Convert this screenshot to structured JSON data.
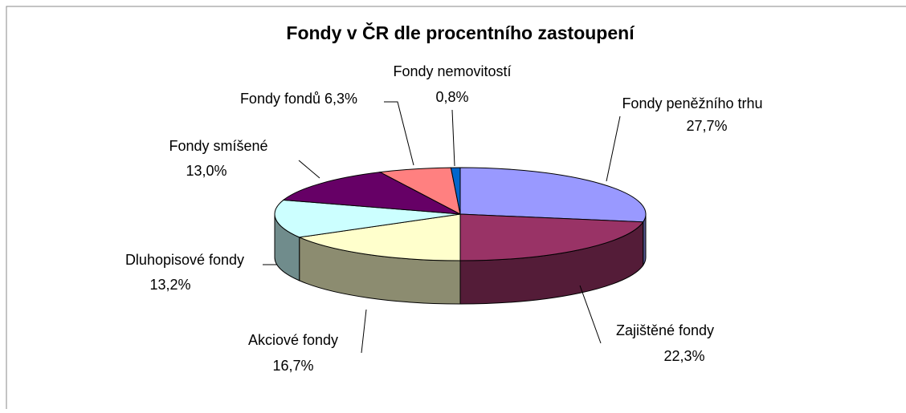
{
  "chart_data": {
    "type": "pie",
    "title": "Fondy v ČR dle procentního zastoupení",
    "categories": [
      "Fondy peněžního trhu",
      "Zajištěné fondy",
      "Akciové fondy",
      "Dluhopisové fondy",
      "Fondy smíšené",
      "Fondy fondů",
      "Fondy nemovitostí"
    ],
    "values": [
      27.7,
      22.3,
      16.7,
      13.2,
      13.0,
      6.3,
      0.8
    ],
    "value_labels": [
      "27,7%",
      "22,3%",
      "16,7%",
      "13,2%",
      "13,0%",
      "6,3%",
      "0,8%"
    ],
    "colors": [
      "#9999ff",
      "#993366",
      "#ffffcc",
      "#ccffff",
      "#660066",
      "#ff8080",
      "#0066cc"
    ]
  }
}
